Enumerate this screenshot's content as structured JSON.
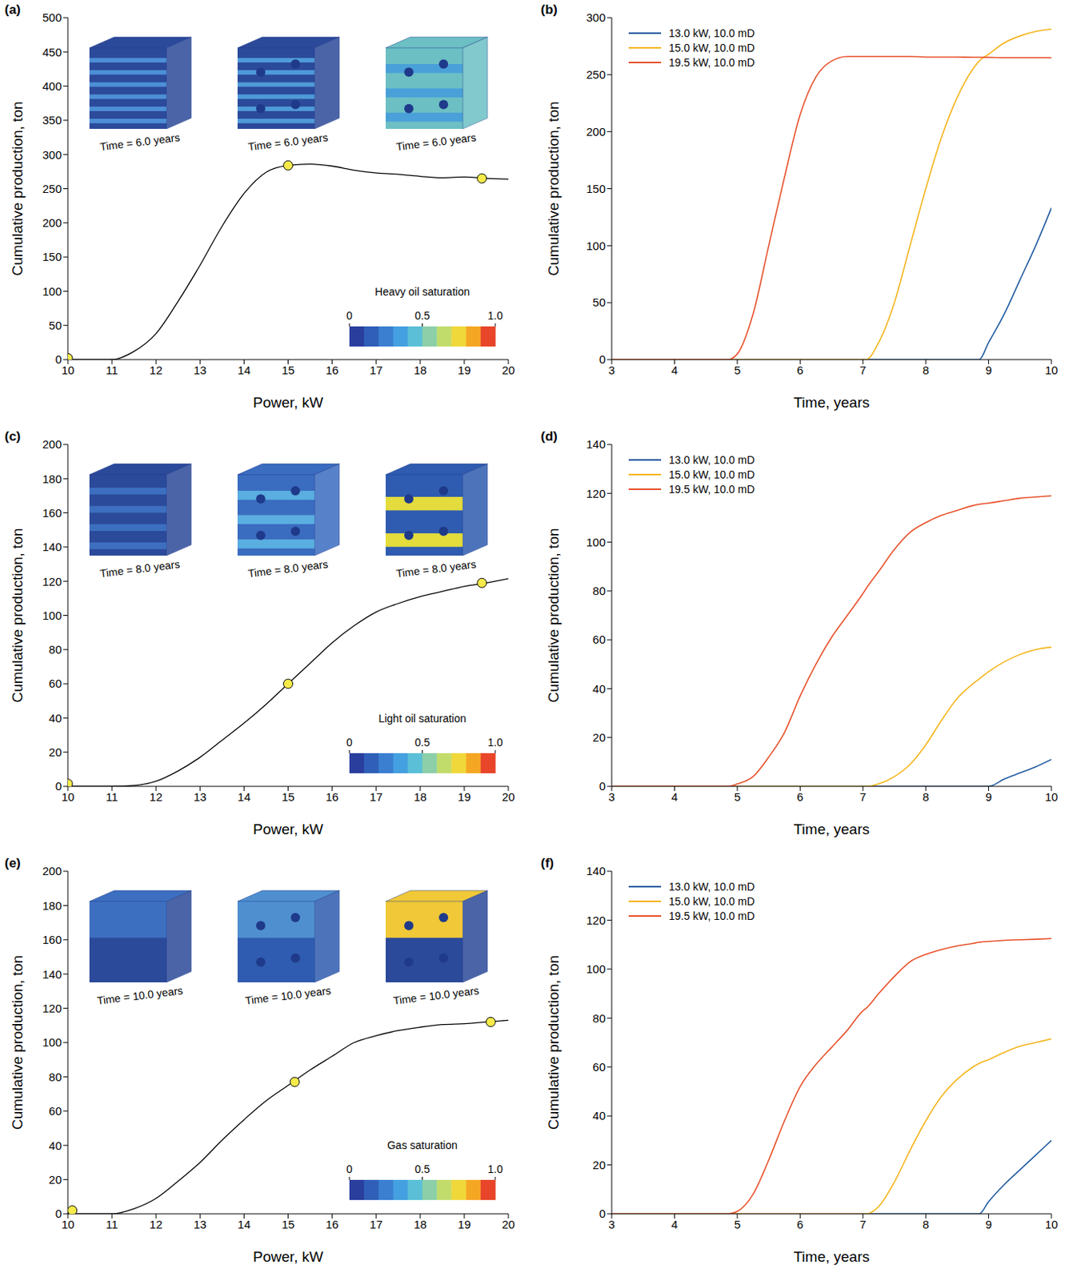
{
  "chart_data": [
    {
      "type": "line",
      "panel": "(a)",
      "x_label": "Power, kW",
      "y_label": "Cumulative production, ton",
      "x": [
        10,
        11,
        11.5,
        12,
        12.5,
        13,
        13.5,
        14,
        14.5,
        15,
        15.5,
        16,
        16.5,
        17,
        17.5,
        18,
        18.5,
        19,
        19.5,
        20
      ],
      "series": [
        {
          "color": "#000000",
          "values": [
            0,
            0,
            12,
            38,
            85,
            138,
            195,
            243,
            274,
            284,
            286,
            283,
            277,
            273,
            271,
            268,
            266,
            267,
            265,
            264
          ]
        }
      ],
      "markers": {
        "x": [
          10,
          15,
          19.4
        ],
        "y": [
          2,
          284,
          265
        ],
        "color": "#f7eb4a"
      },
      "xlim": [
        10,
        20
      ],
      "xticks": [
        10,
        11,
        12,
        13,
        14,
        15,
        16,
        17,
        18,
        19,
        20
      ],
      "ylim": [
        0,
        500
      ],
      "yticks": [
        0,
        50,
        100,
        150,
        200,
        250,
        300,
        350,
        400,
        450,
        500
      ],
      "insets": [
        "Time = 6.0 years",
        "Time = 6.0 years",
        "Time = 6.0 years"
      ],
      "colorbar": {
        "title": "Heavy oil saturation",
        "range": [
          0,
          1
        ],
        "ticks": [
          0,
          0.5,
          {
            "value": 1,
            "label": "1.0"
          }
        ]
      }
    },
    {
      "type": "line",
      "panel": "(b)",
      "x_label": "Time, years",
      "y_label": "Cumulative production, ton",
      "legend": "upper left",
      "x": [
        3,
        4,
        4.85,
        5,
        5.25,
        5.5,
        5.75,
        6,
        6.25,
        6.5,
        6.75,
        7,
        7.05,
        7.25,
        7.5,
        7.75,
        8,
        8.25,
        8.5,
        8.75,
        8.85,
        9,
        9.25,
        9.5,
        9.75,
        10
      ],
      "series": [
        {
          "name": "13.0 kW, 10.0 mD",
          "color": "#1f5aa0",
          "values": [
            0,
            0,
            0,
            0,
            0,
            0,
            0,
            0,
            0,
            0,
            0,
            0,
            0,
            0,
            0,
            0,
            0,
            0,
            0,
            0,
            0,
            15,
            40,
            70,
            100,
            133
          ]
        },
        {
          "name": "15.0 kW, 10.0 mD",
          "color": "#f5b41a",
          "values": [
            0,
            0,
            0,
            0,
            0,
            0,
            0,
            0,
            0,
            0,
            0,
            0,
            0,
            15,
            50,
            100,
            150,
            195,
            230,
            255,
            262,
            268,
            278,
            284,
            288,
            290
          ]
        },
        {
          "name": "19.5 kW, 10.0 mD",
          "color": "#e8502a",
          "values": [
            0,
            0,
            0,
            5,
            40,
            100,
            160,
            215,
            248,
            262,
            266,
            266,
            266,
            266,
            266,
            266,
            265.5,
            265.5,
            265.5,
            265.3,
            265.3,
            265.2,
            265,
            265,
            265,
            265
          ]
        }
      ],
      "xlim": [
        3,
        10
      ],
      "xticks": [
        3,
        4,
        5,
        6,
        7,
        8,
        9,
        10
      ],
      "ylim": [
        0,
        300
      ],
      "yticks": [
        0,
        50,
        100,
        150,
        200,
        250,
        300
      ]
    },
    {
      "type": "line",
      "panel": "(c)",
      "x_label": "Power, kW",
      "y_label": "Cumulative production, ton",
      "x": [
        10,
        11,
        11.5,
        12,
        12.5,
        13,
        13.5,
        14,
        14.5,
        15,
        15.5,
        16,
        16.5,
        17,
        17.5,
        18,
        18.5,
        19,
        19.5,
        20
      ],
      "series": [
        {
          "color": "#000000",
          "values": [
            0,
            0,
            0.5,
            3,
            9,
            17,
            27,
            37,
            48,
            60,
            72,
            84,
            94,
            102,
            107,
            111,
            114,
            117,
            119,
            121.5
          ]
        }
      ],
      "markers": {
        "x": [
          10,
          15,
          19.4
        ],
        "y": [
          1.5,
          60,
          119
        ],
        "color": "#f7eb4a"
      },
      "xlim": [
        10,
        20
      ],
      "xticks": [
        10,
        11,
        12,
        13,
        14,
        15,
        16,
        17,
        18,
        19,
        20
      ],
      "ylim": [
        0,
        200
      ],
      "yticks": [
        0,
        20,
        40,
        60,
        80,
        100,
        120,
        140,
        160,
        180,
        200
      ],
      "insets": [
        "Time = 8.0 years",
        "Time = 8.0 years",
        "Time = 8.0 years"
      ],
      "colorbar": {
        "title": "Light oil saturation",
        "range": [
          0,
          1
        ],
        "ticks": [
          0,
          0.5,
          {
            "value": 1,
            "label": "1.0"
          }
        ]
      }
    },
    {
      "type": "line",
      "panel": "(d)",
      "x_label": "Time, years",
      "y_label": "Cumulative production, ton",
      "legend": "upper left",
      "x": [
        3,
        4,
        4.85,
        5,
        5.25,
        5.5,
        5.75,
        6,
        6.25,
        6.5,
        6.75,
        7,
        7.05,
        7.25,
        7.5,
        7.75,
        8,
        8.25,
        8.5,
        8.75,
        8.85,
        9,
        9.25,
        9.5,
        9.75,
        10
      ],
      "series": [
        {
          "name": "13.0 kW, 10.0 mD",
          "color": "#1f5aa0",
          "values": [
            0,
            0,
            0,
            0,
            0,
            0,
            0,
            0,
            0,
            0,
            0,
            0,
            0,
            0,
            0,
            0,
            0,
            0,
            0,
            0,
            0,
            0,
            3,
            5.5,
            8,
            11
          ]
        },
        {
          "name": "15.0 kW, 10.0 mD",
          "color": "#f5b41a",
          "values": [
            0,
            0,
            0,
            0,
            0,
            0,
            0,
            0,
            0,
            0,
            0,
            0,
            0,
            1,
            4,
            9,
            17,
            27,
            36,
            42,
            44,
            47,
            51,
            54,
            56,
            57
          ]
        },
        {
          "name": "19.5 kW, 10.0 mD",
          "color": "#e8502a",
          "values": [
            0,
            0,
            0,
            1,
            4,
            12,
            22,
            37,
            50,
            61,
            70,
            79,
            81,
            88,
            97,
            104,
            108,
            111,
            113,
            115,
            115.5,
            116,
            117,
            118,
            118.5,
            119
          ]
        }
      ],
      "xlim": [
        3,
        10
      ],
      "xticks": [
        3,
        4,
        5,
        6,
        7,
        8,
        9,
        10
      ],
      "ylim": [
        0,
        140
      ],
      "yticks": [
        0,
        20,
        40,
        60,
        80,
        100,
        120,
        140
      ]
    },
    {
      "type": "line",
      "panel": "(e)",
      "x_label": "Power, kW",
      "y_label": "Cumulative production, ton",
      "x": [
        10,
        11,
        11.5,
        12,
        12.5,
        13,
        13.5,
        14,
        14.5,
        15,
        15.5,
        16,
        16.5,
        17,
        17.5,
        18,
        18.5,
        19,
        19.5,
        20
      ],
      "series": [
        {
          "color": "#000000",
          "values": [
            0,
            0,
            3,
            9,
            19,
            30,
            43,
            55,
            66,
            75,
            84,
            92,
            100,
            104,
            107,
            109,
            110.5,
            111,
            112,
            113
          ]
        }
      ],
      "markers": {
        "x": [
          10.1,
          15.15,
          19.6
        ],
        "y": [
          2,
          77,
          112
        ],
        "color": "#f7eb4a"
      },
      "xlim": [
        10,
        20
      ],
      "xticks": [
        10,
        11,
        12,
        13,
        14,
        15,
        16,
        17,
        18,
        19,
        20
      ],
      "ylim": [
        0,
        200
      ],
      "yticks": [
        0,
        20,
        40,
        60,
        80,
        100,
        120,
        140,
        160,
        180,
        200
      ],
      "insets": [
        "Time = 10.0 years",
        "Time = 10.0 years",
        "Time = 10.0 years"
      ],
      "colorbar": {
        "title": "Gas saturation",
        "range": [
          0,
          1
        ],
        "ticks": [
          0,
          0.5,
          {
            "value": 1,
            "label": "1.0"
          }
        ]
      }
    },
    {
      "type": "line",
      "panel": "(f)",
      "x_label": "Time, years",
      "y_label": "Cumulative production, ton",
      "legend": "upper left",
      "x": [
        3,
        4,
        4.85,
        5,
        5.25,
        5.5,
        5.75,
        6,
        6.25,
        6.5,
        6.75,
        7,
        7.05,
        7.25,
        7.5,
        7.75,
        8,
        8.25,
        8.5,
        8.75,
        8.85,
        9,
        9.25,
        9.5,
        9.75,
        10
      ],
      "series": [
        {
          "name": "13.0 kW, 10.0 mD",
          "color": "#1f5aa0",
          "values": [
            0,
            0,
            0,
            0,
            0,
            0,
            0,
            0,
            0,
            0,
            0,
            0,
            0,
            0,
            0,
            0,
            0,
            0,
            0,
            0,
            0,
            5,
            12,
            18,
            24,
            30
          ]
        },
        {
          "name": "15.0 kW, 10.0 mD",
          "color": "#f5b41a",
          "values": [
            0,
            0,
            0,
            0,
            0,
            0,
            0,
            0,
            0,
            0,
            0,
            0,
            0,
            3,
            13,
            26,
            38,
            48,
            55,
            60,
            61.5,
            63,
            66,
            68.5,
            70,
            71.5
          ]
        },
        {
          "name": "19.5 kW, 10.0 mD",
          "color": "#e8502a",
          "values": [
            0,
            0,
            0,
            1,
            8,
            22,
            38,
            52,
            61,
            68,
            75,
            83,
            84,
            90,
            97,
            103,
            106,
            108,
            109.5,
            110.5,
            111,
            111.3,
            111.8,
            112,
            112.2,
            112.5
          ]
        }
      ],
      "xlim": [
        3,
        10
      ],
      "xticks": [
        3,
        4,
        5,
        6,
        7,
        8,
        9,
        10
      ],
      "ylim": [
        0,
        140
      ],
      "yticks": [
        0,
        20,
        40,
        60,
        80,
        100,
        120,
        140
      ]
    }
  ]
}
